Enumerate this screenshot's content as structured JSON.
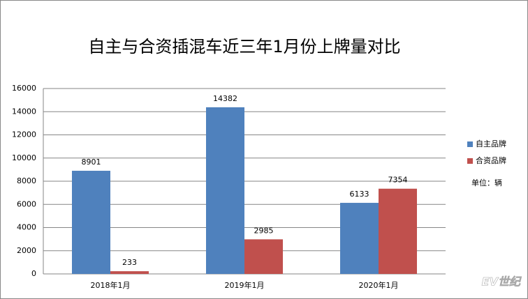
{
  "chart_data": {
    "type": "bar",
    "title": "自主与合资插混车近三年1月份上牌量对比",
    "categories": [
      "2018年1月",
      "2019年1月",
      "2020年1月"
    ],
    "series": [
      {
        "name": "自主品牌",
        "color": "#4f81bd",
        "values": [
          8901,
          14382,
          6133
        ]
      },
      {
        "name": "合资品牌",
        "color": "#c0504d",
        "values": [
          233,
          2985,
          7354
        ]
      }
    ],
    "ylim": [
      0,
      16000
    ],
    "yticks": [
      0,
      2000,
      4000,
      6000,
      8000,
      10000,
      12000,
      14000,
      16000
    ],
    "grid": true,
    "legend": "right",
    "annotation": "单位：辆",
    "watermark": "EV世纪"
  }
}
